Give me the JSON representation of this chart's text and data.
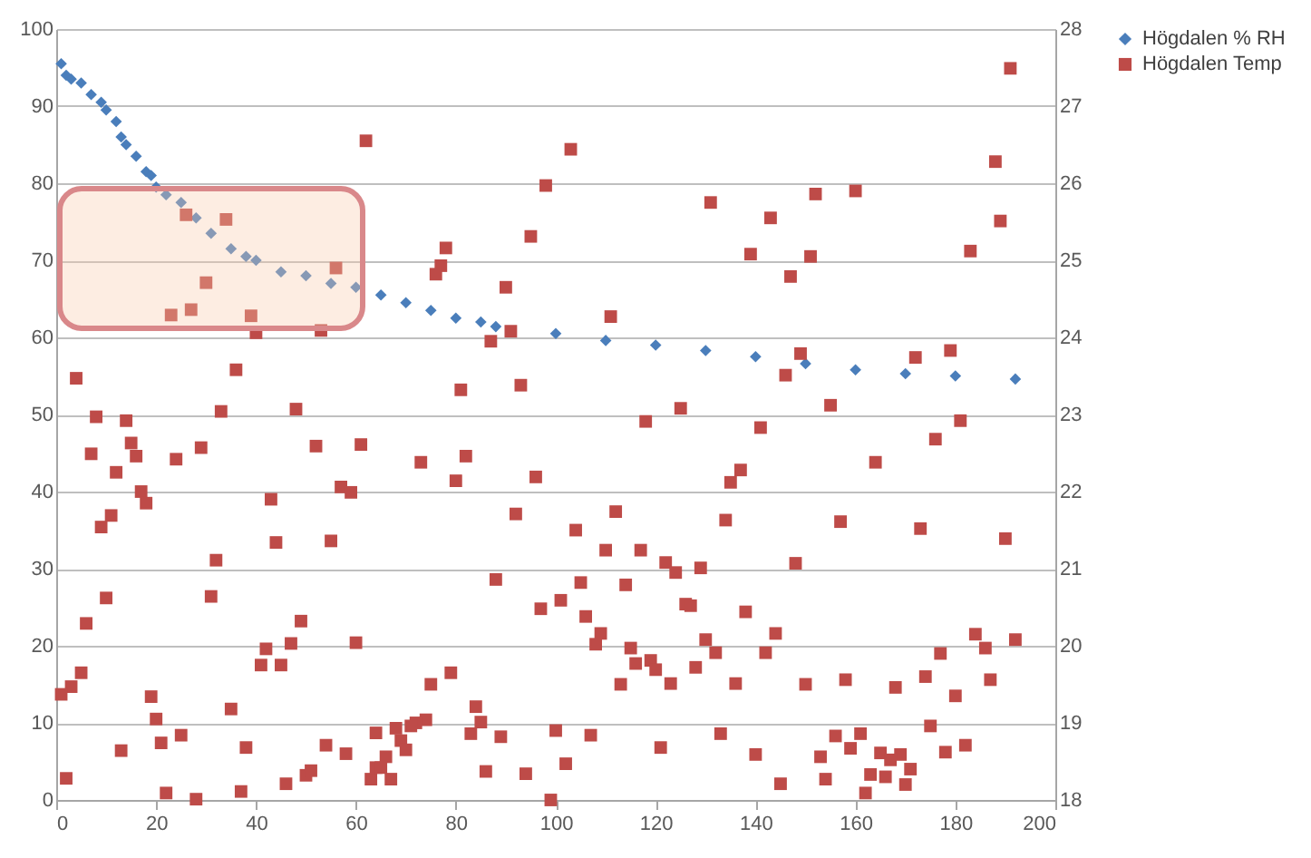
{
  "chart_data": {
    "type": "scatter",
    "xlim": [
      0,
      200
    ],
    "xticks": [
      0,
      20,
      40,
      60,
      80,
      100,
      120,
      140,
      160,
      180,
      200
    ],
    "ylim": [
      0,
      100
    ],
    "yticks": [
      0,
      10,
      20,
      30,
      40,
      50,
      60,
      70,
      80,
      90,
      100
    ],
    "y2lim": [
      18,
      28
    ],
    "y2ticks": [
      18,
      19,
      20,
      21,
      22,
      23,
      24,
      25,
      26,
      27,
      28
    ],
    "grid": "y",
    "legend": "right",
    "series": [
      {
        "name": "Högdalen % RH",
        "color": "#4a7ebb",
        "marker": "diamond",
        "x": [
          1,
          2,
          3,
          5,
          7,
          9,
          10,
          12,
          13,
          14,
          16,
          18,
          19,
          20,
          22,
          25,
          28,
          31,
          35,
          38,
          40,
          45,
          50,
          55,
          60,
          65,
          70,
          75,
          80,
          85,
          88,
          100,
          110,
          120,
          130,
          140,
          150,
          160,
          170,
          180,
          192
        ],
        "values": [
          95.5,
          94,
          93.5,
          93,
          91.5,
          90.5,
          89.5,
          88,
          86,
          85,
          83.5,
          81.5,
          81,
          79.5,
          78.5,
          77.5,
          75.5,
          73.5,
          71.5,
          70.5,
          70,
          68.5,
          68,
          67,
          66.5,
          65.5,
          64.5,
          63.5,
          62.5,
          62,
          61.4,
          60.5,
          59.6,
          59,
          58.3,
          57.5,
          56.6,
          55.8,
          55.3,
          55,
          54.6
        ]
      },
      {
        "name": "Högdalen Temp",
        "color": "#be4b48",
        "marker": "square",
        "axis": "y2",
        "x": [
          8,
          14,
          7,
          15,
          16,
          12,
          24,
          29,
          33,
          48,
          52,
          61,
          17,
          18,
          11,
          9,
          43,
          57,
          59,
          44,
          55,
          32,
          10,
          31,
          6,
          49,
          5,
          3,
          1,
          42,
          41,
          45,
          47,
          60,
          19,
          20,
          35,
          13,
          21,
          25,
          38,
          54,
          58,
          64,
          2,
          22,
          28,
          37,
          46,
          50,
          51,
          63,
          64,
          62,
          26,
          34,
          56,
          30,
          23,
          27,
          39,
          40,
          53,
          4,
          36,
          103,
          98,
          131,
          95,
          78,
          77,
          76,
          90,
          111,
          91,
          87,
          81,
          93,
          118,
          125,
          191,
          188,
          152,
          160,
          143,
          189,
          139,
          151,
          183,
          147,
          149,
          146,
          172,
          179,
          155,
          181,
          73,
          82,
          80,
          96,
          92,
          112,
          104,
          110,
          117,
          122,
          124,
          129,
          88,
          105,
          114,
          97,
          101,
          126,
          127,
          106,
          109,
          108,
          115,
          130,
          132,
          116,
          119,
          120,
          128,
          113,
          123,
          79,
          75,
          84,
          85,
          83,
          89,
          100,
          107,
          74,
          72,
          71,
          68,
          69,
          70,
          121,
          66,
          65,
          67,
          86,
          94,
          102,
          99,
          141,
          176,
          164,
          137,
          135,
          134,
          157,
          173,
          190,
          148,
          138,
          144,
          142,
          184,
          186,
          192,
          177,
          174,
          158,
          150,
          136,
          168,
          187,
          180,
          175,
          133,
          161,
          156,
          159,
          182,
          178,
          140,
          153,
          165,
          169,
          167,
          171,
          163,
          166,
          154,
          145,
          170,
          162
        ],
        "values": [
          22.97,
          22.92,
          22.49,
          22.63,
          22.46,
          22.25,
          22.42,
          22.57,
          23.04,
          23.07,
          22.59,
          22.61,
          22,
          21.85,
          21.69,
          21.54,
          21.9,
          22.06,
          21.99,
          21.34,
          21.36,
          21.11,
          20.62,
          20.64,
          20.29,
          20.32,
          19.65,
          19.47,
          19.37,
          19.96,
          19.75,
          19.75,
          20.03,
          20.04,
          19.34,
          19.05,
          19.18,
          18.64,
          18.74,
          18.84,
          18.68,
          18.71,
          18.6,
          18.87,
          18.28,
          18.09,
          18.01,
          18.11,
          18.21,
          18.32,
          18.38,
          18.27,
          18.42,
          26.55,
          25.59,
          25.53,
          24.9,
          24.71,
          24.29,
          24.36,
          24.28,
          24.06,
          24.09,
          23.47,
          23.58,
          26.44,
          25.97,
          25.75,
          25.31,
          25.16,
          24.93,
          24.82,
          24.65,
          24.27,
          24.08,
          23.95,
          23.32,
          23.38,
          22.91,
          23.08,
          27.49,
          26.28,
          25.86,
          25.9,
          25.55,
          25.51,
          25.08,
          25.05,
          25.12,
          24.79,
          23.79,
          23.51,
          23.74,
          23.83,
          23.12,
          22.92,
          22.38,
          22.46,
          22.14,
          22.19,
          21.71,
          21.74,
          21.5,
          21.24,
          21.24,
          21.08,
          20.95,
          21.01,
          20.86,
          20.82,
          20.79,
          20.48,
          20.59,
          20.54,
          20.52,
          20.38,
          20.16,
          20.02,
          19.97,
          20.08,
          19.91,
          19.77,
          19.81,
          19.69,
          19.72,
          19.5,
          19.51,
          19.65,
          19.5,
          19.21,
          19.01,
          18.86,
          18.82,
          18.9,
          18.84,
          19.04,
          19,
          18.96,
          18.93,
          18.77,
          18.65,
          18.68,
          18.56,
          18.42,
          18.27,
          18.37,
          18.34,
          18.47,
          18,
          22.83,
          22.68,
          22.38,
          22.28,
          22.12,
          21.63,
          21.61,
          21.52,
          21.39,
          21.07,
          20.44,
          20.16,
          19.91,
          20.15,
          19.97,
          20.08,
          19.9,
          19.6,
          19.56,
          19.5,
          19.51,
          19.46,
          19.56,
          19.35,
          18.96,
          18.86,
          18.86,
          18.83,
          18.67,
          18.71,
          18.62,
          18.59,
          18.56,
          18.61,
          18.59,
          18.52,
          18.4,
          18.33,
          18.3,
          18.27,
          18.21,
          18.2,
          18.09
        ]
      }
    ]
  }
}
